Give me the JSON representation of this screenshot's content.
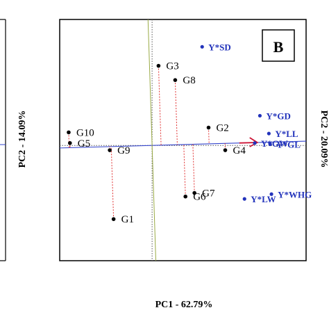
{
  "chart_data": {
    "type": "scatter",
    "panel_label": "B",
    "xlabel": "PC1 - 62.79%",
    "ylabel": "PC2 - 20.09%",
    "left_panel": {
      "ylabel": "PC2 - 14.09%"
    },
    "colors": {
      "genotype": "#000000",
      "trait": "#2233bb",
      "projection": "#e03030",
      "axis_line": "#3344cc",
      "arrow": "#cc1133",
      "perpendicular": "#99aa44",
      "zero_line": "#555555"
    },
    "genotypes": [
      {
        "label": "G1",
        "x": -0.3,
        "y": -0.62
      },
      {
        "label": "G2",
        "x": 0.44,
        "y": 0.15
      },
      {
        "label": "G3",
        "x": 0.05,
        "y": 0.67
      },
      {
        "label": "G4",
        "x": 0.57,
        "y": -0.04
      },
      {
        "label": "G5",
        "x": -0.64,
        "y": 0.02
      },
      {
        "label": "G6",
        "x": 0.26,
        "y": -0.43
      },
      {
        "label": "G7",
        "x": 0.33,
        "y": -0.4
      },
      {
        "label": "G8",
        "x": 0.18,
        "y": 0.55
      },
      {
        "label": "G9",
        "x": -0.33,
        "y": -0.04
      },
      {
        "label": "G10",
        "x": -0.65,
        "y": 0.11
      }
    ],
    "traits": [
      {
        "label": "Y*SD",
        "x": 0.39,
        "y": 0.83
      },
      {
        "label": "Y*GD",
        "x": 0.84,
        "y": 0.25
      },
      {
        "label": "Y*LL",
        "x": 0.91,
        "y": 0.1
      },
      {
        "label": "Y*GW",
        "x": 0.8,
        "y": 0.02
      },
      {
        "label": "Y*GL",
        "x": 0.92,
        "y": 0.01
      },
      {
        "label": "Y*LW",
        "x": 0.72,
        "y": -0.45
      },
      {
        "label": "Y*WHG",
        "x": 0.93,
        "y": -0.41
      }
    ],
    "xlim": [
      -0.72,
      1.2
    ],
    "ylim": [
      -0.97,
      1.06
    ],
    "grid": false,
    "legend": "none"
  }
}
